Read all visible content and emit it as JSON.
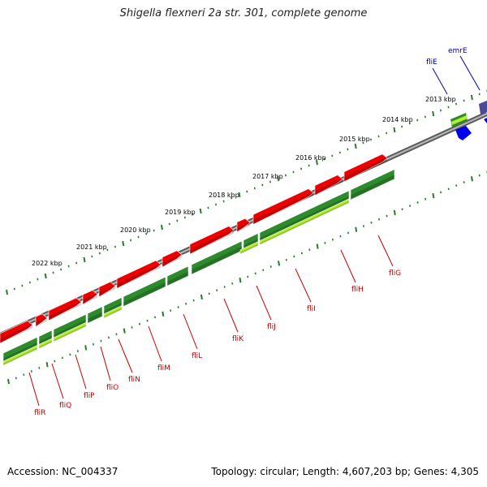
{
  "title": "Shigella flexneri 2a str. 301, complete genome",
  "footer": {
    "accession": "Accession: NC_004337",
    "topology": "Topology: circular; Length: 4,607,203 bp; Genes: 4,305"
  },
  "colors": {
    "forward_gene": "#ee0000",
    "reverse_gene": "#2d8a2d",
    "cds_track": "#b5ee30",
    "label_red": "#cc0000",
    "label_blue": "#0000aa",
    "backbone": "#888888",
    "ticks": "#2a7a2a"
  },
  "scale_labels": [
    "2013 kbp",
    "2014 kbp",
    "2015 kbp",
    "2016 kbp",
    "2017 kbp",
    "2018 kbp",
    "2019 kbp",
    "2020 kbp",
    "2021 kbp",
    "2022 kbp"
  ],
  "gene_labels_red": [
    "fliR",
    "fliQ",
    "fliP",
    "fliO",
    "fliN",
    "fliM",
    "fliL",
    "fliK",
    "fliJ",
    "fliI",
    "fliH",
    "fliG"
  ],
  "gene_labels_blue": [
    "fliE",
    "emrE"
  ]
}
